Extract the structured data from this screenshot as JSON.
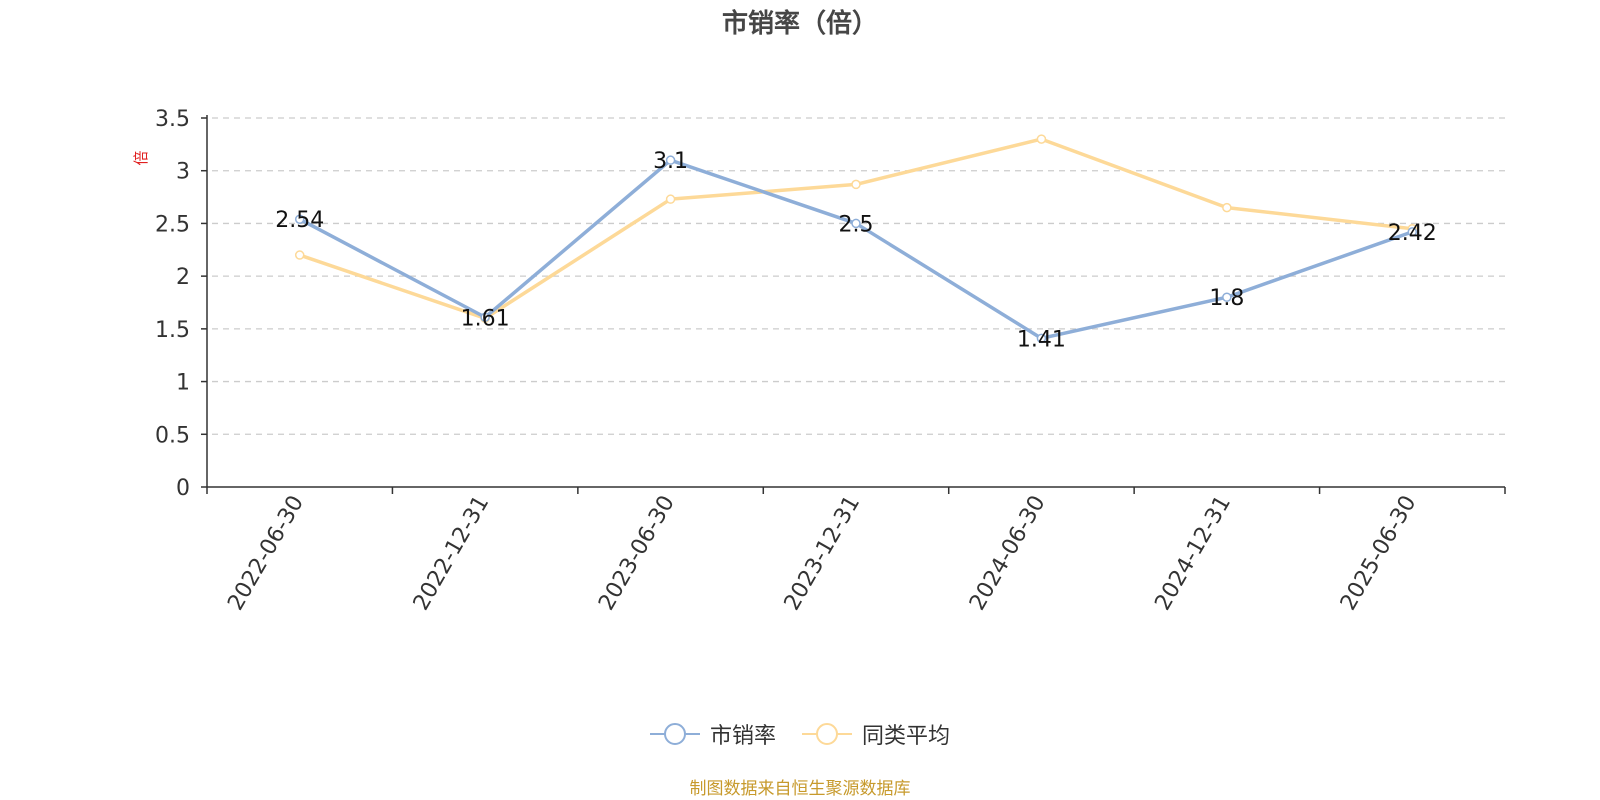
{
  "chart_data": {
    "type": "line",
    "title": "市销率（倍）",
    "ylabel": "倍",
    "xlabel": "",
    "categories": [
      "2022-06-30",
      "2022-12-31",
      "2023-06-30",
      "2023-12-31",
      "2024-06-30",
      "2024-12-31",
      "2025-06-30"
    ],
    "ylim": [
      0,
      3.5
    ],
    "yticks": [
      "0",
      "0.5",
      "1",
      "1.5",
      "2",
      "2.5",
      "3",
      "3.5"
    ],
    "grid": true,
    "legend_position": "bottom",
    "series": [
      {
        "name": "市销率",
        "values": [
          2.54,
          1.61,
          3.1,
          2.5,
          1.41,
          1.8,
          2.42
        ],
        "labels": [
          "2.54",
          "1.61",
          "3.1",
          "2.5",
          "1.41",
          "1.8",
          "2.42"
        ],
        "color": "#8eaed8",
        "show_labels": true
      },
      {
        "name": "同类平均",
        "values": [
          2.2,
          1.6,
          2.73,
          2.87,
          3.3,
          2.65,
          2.45
        ],
        "color": "#fdd998",
        "show_labels": false
      }
    ]
  },
  "source_note": "制图数据来自恒生聚源数据库",
  "colors": {
    "axis": "#333333",
    "grid": "#cccccc",
    "ylabel": "#e02020",
    "source": "#c79a2c"
  }
}
